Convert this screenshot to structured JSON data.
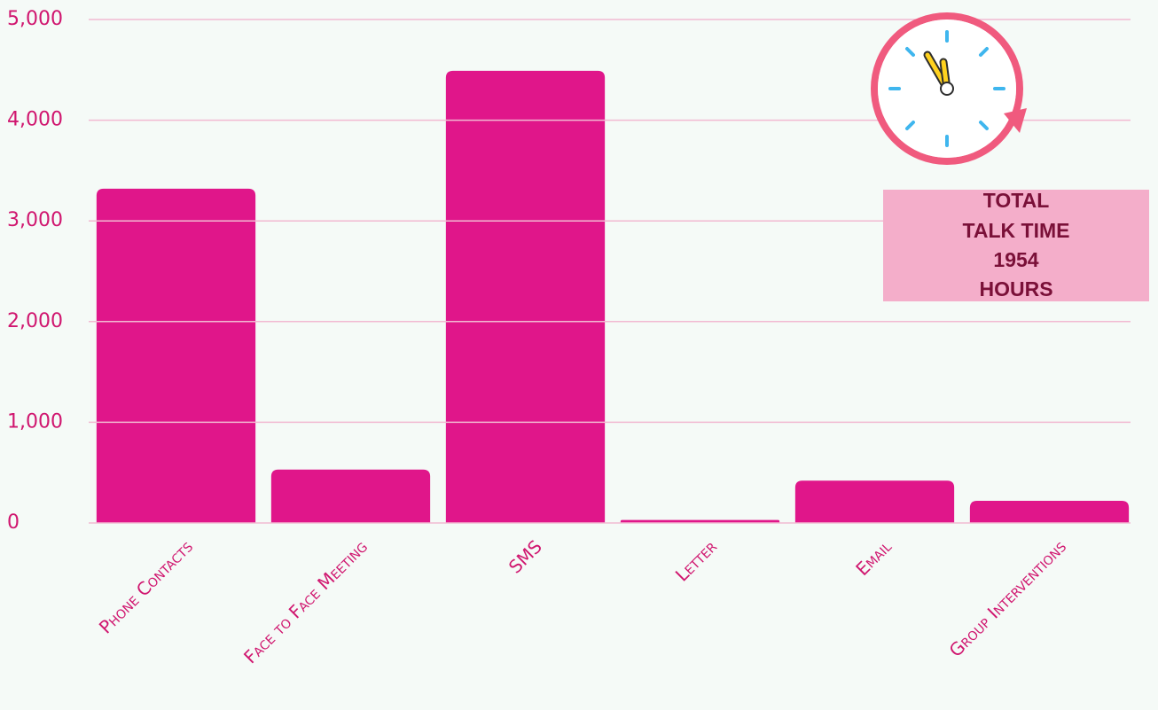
{
  "chart_data": {
    "type": "bar",
    "categories": [
      "Phone Contacts",
      "Face to Face Meeting",
      "SMS",
      "Letter",
      "Email",
      "Group Interventions"
    ],
    "values": [
      3320,
      530,
      4490,
      30,
      420,
      220
    ],
    "color": "#e0168a",
    "ylim": [
      0,
      5000
    ],
    "yticks": [
      0,
      {
        "value": 1000,
        "label": "1,000"
      },
      {
        "value": 2000,
        "label": "2,000"
      },
      {
        "value": 3000,
        "label": "3,000"
      },
      {
        "value": 4000,
        "label": "4,000"
      },
      {
        "value": 5000,
        "label": "5,000"
      }
    ],
    "grid": true,
    "annotation": "TOTAL TALK TIME 1954 HOURS"
  }
}
